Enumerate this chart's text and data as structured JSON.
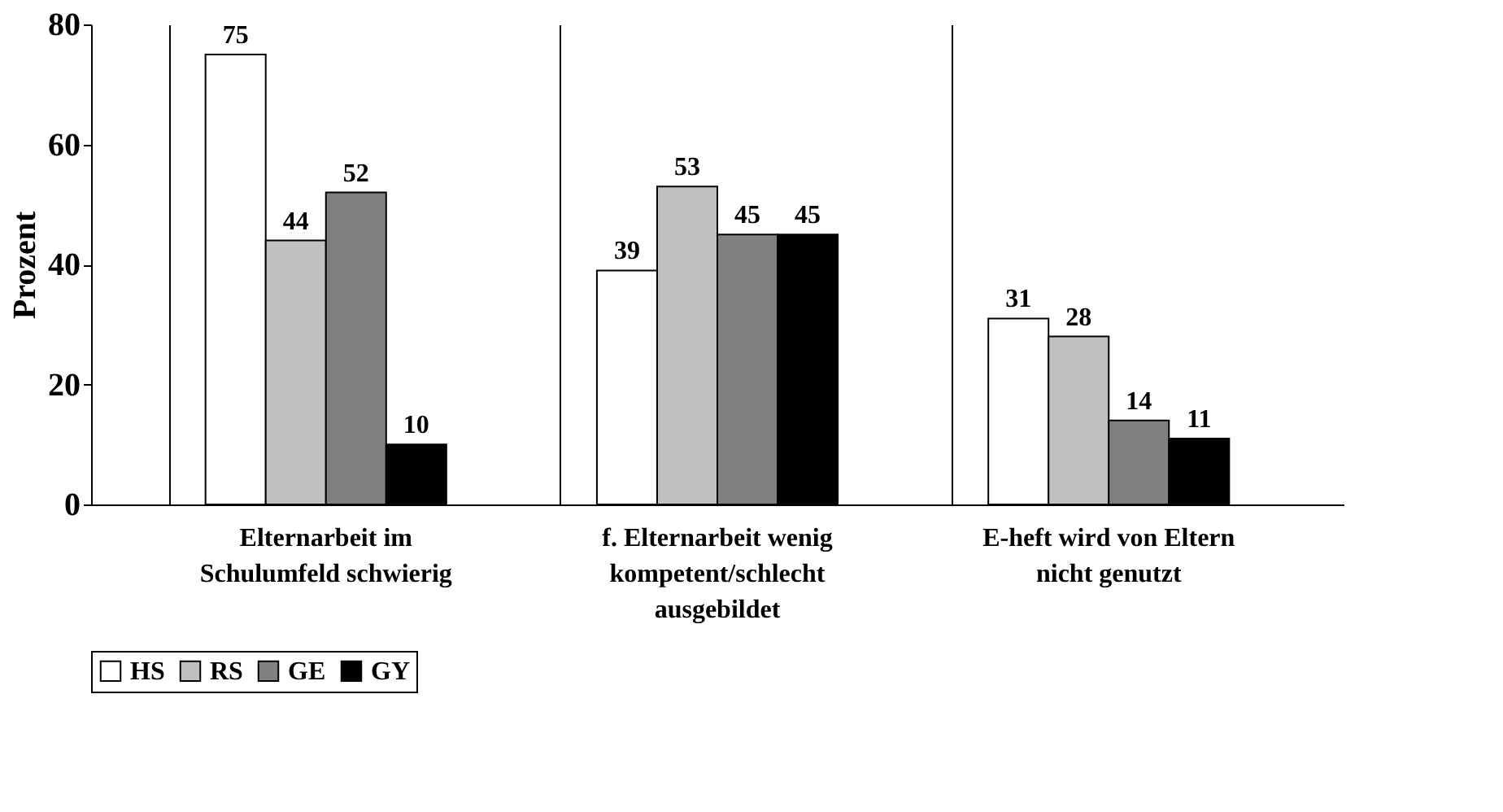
{
  "chart_data": {
    "type": "bar",
    "ylabel": "Prozent",
    "categories": [
      "Elternarbeit im Schulumfeld schwierig",
      "f. Elternarbeit wenig kompetent/schlecht ausgebildet",
      "E-heft wird von Eltern nicht genutzt"
    ],
    "series": [
      {
        "name": "HS",
        "color": "#ffffff",
        "values": [
          75,
          39,
          31
        ]
      },
      {
        "name": "RS",
        "color": "#c0c0c0",
        "values": [
          44,
          53,
          28
        ]
      },
      {
        "name": "GE",
        "color": "#808080",
        "values": [
          52,
          45,
          14
        ]
      },
      {
        "name": "GY",
        "color": "#000000",
        "values": [
          10,
          45,
          11
        ]
      }
    ],
    "ylim": [
      0,
      80
    ],
    "yticks": [
      0,
      20,
      40,
      60,
      80
    ],
    "data_labels": true,
    "grid": "x",
    "legend": "bottom"
  }
}
